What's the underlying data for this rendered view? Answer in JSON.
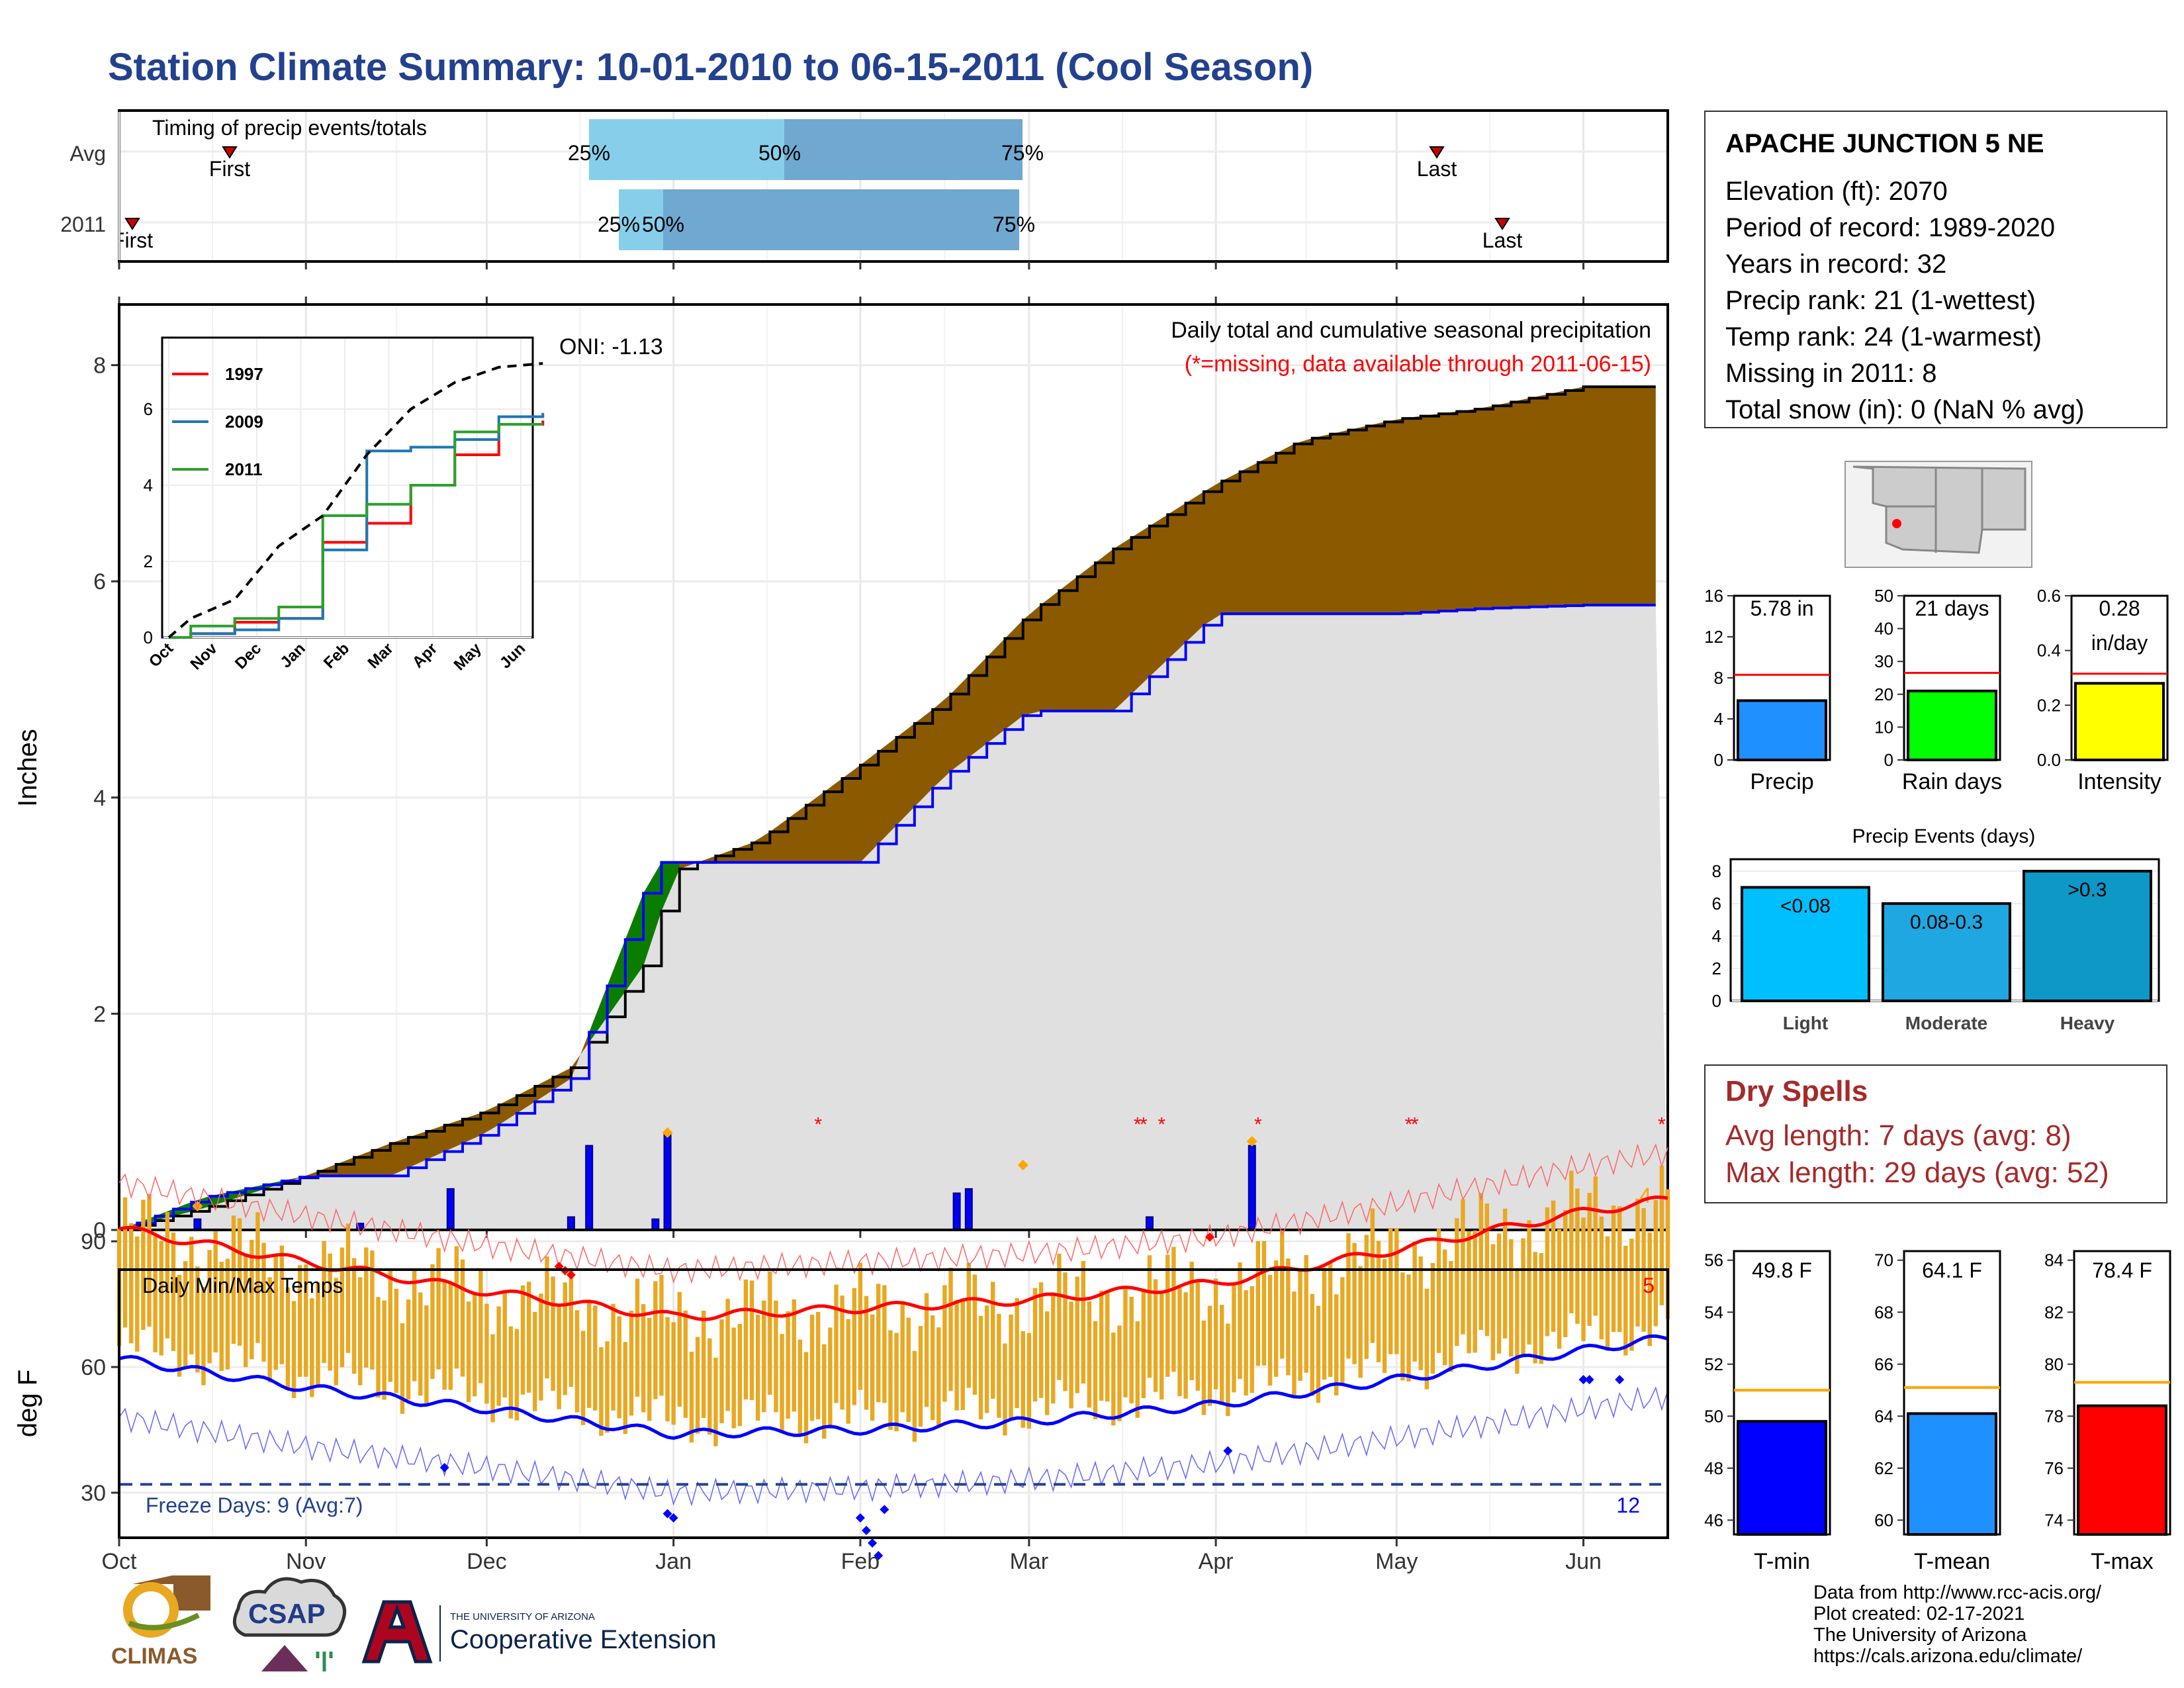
{
  "title": "Station Climate Summary: 10-01-2010 to 06-15-2011 (Cool Season)",
  "colors": {
    "title": "#22418e",
    "accum_avg": "#e0e0e0",
    "deficit": "#8b5a00",
    "surplus": "#0a7d00",
    "daily_bar": "#0000ff",
    "temp_bar": "#e8a822",
    "max_line": "#ff0000",
    "min_line": "#0000ff"
  },
  "timing": {
    "title": "Timing of precip events/totals",
    "rows": [
      "Avg",
      "2011"
    ],
    "avg": {
      "first": "First",
      "last": "Last",
      "q25": "25%",
      "q50": "50%",
      "q75": "75%"
    },
    "y2011": {
      "first": "First",
      "last": "Last",
      "q25": "25%",
      "q50": "50%",
      "q75": "75%"
    }
  },
  "precip": {
    "ylabel": "Inches",
    "yticks": [
      "0",
      "2",
      "4",
      "6",
      "8"
    ],
    "caption": "Daily total and cumulative seasonal precipitation",
    "missing_note": "(*=missing, data available through 2011-06-15)",
    "oni": "ONI: -1.13",
    "corner_count": "4"
  },
  "inset": {
    "yticks": [
      "0",
      "2",
      "4",
      "6"
    ],
    "months": [
      "Oct",
      "Nov",
      "Dec",
      "Jan",
      "Feb",
      "Mar",
      "Apr",
      "May",
      "Jun"
    ],
    "legend": [
      "1997",
      "2009",
      "2011"
    ]
  },
  "temps": {
    "ylabel": "deg F",
    "title": "Daily Min/Max Temps",
    "yticks": [
      "30",
      "60",
      "90"
    ],
    "freeze_note": "Freeze Days: 9 (Avg:7)",
    "max_count": "5",
    "min_count": "12"
  },
  "x_months": [
    "Oct",
    "Nov",
    "Dec",
    "Jan",
    "Feb",
    "Mar",
    "Apr",
    "May",
    "Jun"
  ],
  "station": {
    "name": "APACHE JUNCTION 5 NE",
    "lines": [
      "Elevation (ft): 2070",
      "Period of record: 1989-2020",
      "Years in record: 32",
      "Precip rank: 21 (1-wettest)",
      "Temp rank: 24 (1-warmest)",
      "Missing in 2011: 8",
      "Total snow (in): 0 (NaN % avg)"
    ]
  },
  "small_bars": [
    {
      "value_label": "5.78 in",
      "label": "Precip",
      "ticks": [
        "0",
        "4",
        "8",
        "12",
        "16"
      ],
      "color": "#1e90ff"
    },
    {
      "value_label": "21 days",
      "label": "Rain days",
      "ticks": [
        "0",
        "10",
        "20",
        "30",
        "40",
        "50"
      ],
      "color": "#00ff00"
    },
    {
      "value_label": "0.28 in/day",
      "label": "Intensity",
      "ticks": [
        "0.0",
        "0.2",
        "0.4",
        "0.6"
      ],
      "color": "#ffff00"
    }
  ],
  "events": {
    "title": "Precip Events (days)",
    "ticks": [
      "0",
      "2",
      "4",
      "6",
      "8"
    ],
    "categories": [
      "Light",
      "Moderate",
      "Heavy"
    ],
    "labels": [
      "<0.08",
      "0.08-0.3",
      ">0.3"
    ]
  },
  "dry": {
    "title": "Dry Spells",
    "avg": "Avg length: 7 days (avg: 8)",
    "max": "Max length: 29 days (avg: 52)"
  },
  "temp_bars": [
    {
      "value_label": "49.8 F",
      "label": "T-min",
      "ticks": [
        "46",
        "48",
        "50",
        "52",
        "54",
        "56"
      ],
      "color": "#0000ff"
    },
    {
      "value_label": "64.1 F",
      "label": "T-mean",
      "ticks": [
        "60",
        "62",
        "64",
        "66",
        "68",
        "70"
      ],
      "color": "#1e90ff"
    },
    {
      "value_label": "78.4 F",
      "label": "T-max",
      "ticks": [
        "74",
        "76",
        "78",
        "80",
        "82",
        "84"
      ],
      "color": "#ff0000"
    }
  ],
  "footer": [
    "Data from http://www.rcc-acis.org/",
    "Plot created: 02-17-2021",
    "The University of Arizona",
    "https://cals.arizona.edu/climate/"
  ],
  "logos": {
    "climas": "CLIMAS",
    "csap": "CSAP",
    "ua_small": "THE UNIVERSITY OF ARIZONA",
    "coop": "Cooperative Extension"
  },
  "chart_data": [
    {
      "type": "line",
      "title": "Daily total and cumulative seasonal precipitation",
      "ylabel": "Inches",
      "ylim": [
        0,
        8.5
      ],
      "x": [
        "2010-10-01",
        "2010-10-15",
        "2010-11-01",
        "2010-11-15",
        "2010-12-01",
        "2010-12-15",
        "2010-12-29",
        "2010-12-31",
        "2011-01-15",
        "2011-02-01",
        "2011-02-15",
        "2011-03-01",
        "2011-03-15",
        "2011-04-01",
        "2011-04-15",
        "2011-05-01",
        "2011-05-15",
        "2011-06-01",
        "2011-06-15"
      ],
      "series": [
        {
          "values": [
            0.0,
            0.2,
            0.5,
            0.8,
            1.1,
            1.5,
            2.6,
            3.3,
            3.6,
            4.3,
            4.9,
            5.7,
            6.3,
            6.9,
            7.3,
            7.5,
            7.6,
            7.8,
            7.8
          ]
        },
        {
          "values": [
            0.0,
            0.3,
            0.5,
            0.5,
            0.9,
            1.4,
            3.4,
            3.4,
            3.4,
            3.4,
            4.2,
            4.8,
            4.8,
            5.7,
            5.7,
            5.7,
            5.75,
            5.78,
            5.78
          ]
        }
      ],
      "daily_bars": [
        {
          "x": "2010-10-14",
          "value": 0.1
        },
        {
          "x": "2010-11-10",
          "value": 0.06
        },
        {
          "x": "2010-11-25",
          "value": 0.38
        },
        {
          "x": "2010-12-15",
          "value": 0.12
        },
        {
          "x": "2010-12-18",
          "value": 0.78
        },
        {
          "x": "2010-12-29",
          "value": 0.1
        },
        {
          "x": "2010-12-31",
          "value": 0.9
        },
        {
          "x": "2011-02-17",
          "value": 0.34
        },
        {
          "x": "2011-02-19",
          "value": 0.38
        },
        {
          "x": "2011-03-21",
          "value": 0.12
        },
        {
          "x": "2011-04-07",
          "value": 0.78
        }
      ]
    },
    {
      "type": "line",
      "title": "Daily Min/Max Temps",
      "ylabel": "deg F",
      "x": [
        "2010-10-01",
        "2010-11-01",
        "2010-12-01",
        "2011-01-01",
        "2011-02-01",
        "2011-03-01",
        "2011-04-01",
        "2011-05-01",
        "2011-06-01",
        "2011-06-15"
      ],
      "series": [
        {
          "values": [
            93,
            85,
            78,
            72,
            74,
            76,
            80,
            88,
            97,
            100
          ]
        },
        {
          "values": [
            62,
            55,
            50,
            44,
            45,
            47,
            51,
            57,
            64,
            67
          ]
        }
      ]
    },
    {
      "type": "bar",
      "title": "Precip Events (days)",
      "categories": [
        "Light",
        "Moderate",
        "Heavy"
      ],
      "values": [
        7,
        6,
        8
      ],
      "ylim": [
        0,
        8.5
      ]
    },
    {
      "type": "bar",
      "categories": [
        "Precip",
        "Rain days",
        "Intensity"
      ],
      "values": [
        5.78,
        21,
        0.28
      ]
    },
    {
      "type": "bar",
      "categories": [
        "T-min",
        "T-mean",
        "T-max"
      ],
      "values": [
        49.8,
        64.1,
        78.4
      ]
    }
  ]
}
